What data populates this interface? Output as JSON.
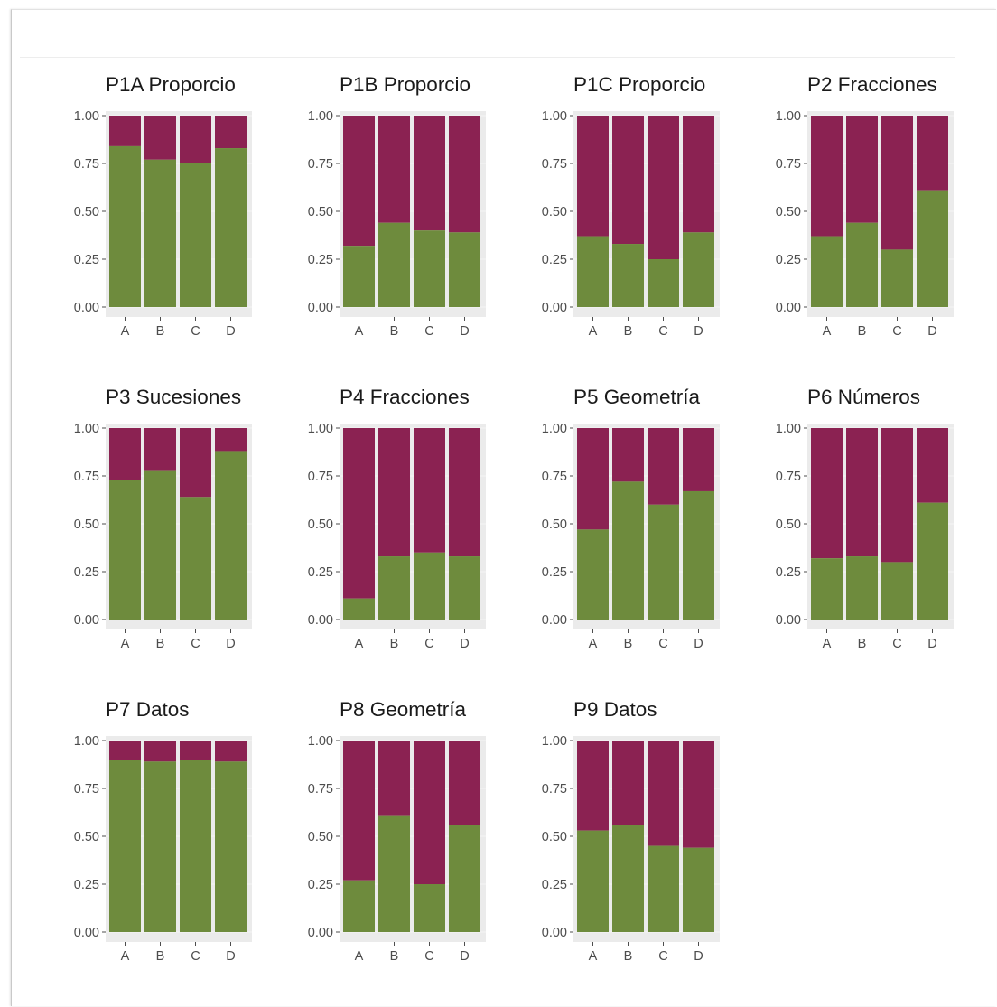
{
  "colors": {
    "correct": "#6e8b3d",
    "incorrect": "#8b2252",
    "panel_bg": "#ebebeb",
    "grid": "#f7f7f7",
    "tick": "#4d4d4d"
  },
  "y_ticks": [
    "0.00",
    "0.25",
    "0.50",
    "0.75",
    "1.00"
  ],
  "chart_data": [
    {
      "type": "bar",
      "stacked": true,
      "title": "P1A Proporcio",
      "categories": [
        "A",
        "B",
        "C",
        "D"
      ],
      "values": [
        0.84,
        0.77,
        0.75,
        0.83
      ],
      "ylim": [
        0,
        1
      ]
    },
    {
      "type": "bar",
      "stacked": true,
      "title": "P1B Proporcio",
      "categories": [
        "A",
        "B",
        "C",
        "D"
      ],
      "values": [
        0.32,
        0.44,
        0.4,
        0.39
      ],
      "ylim": [
        0,
        1
      ]
    },
    {
      "type": "bar",
      "stacked": true,
      "title": "P1C Proporcio",
      "categories": [
        "A",
        "B",
        "C",
        "D"
      ],
      "values": [
        0.37,
        0.33,
        0.25,
        0.39
      ],
      "ylim": [
        0,
        1
      ]
    },
    {
      "type": "bar",
      "stacked": true,
      "title": "P2 Fracciones",
      "categories": [
        "A",
        "B",
        "C",
        "D"
      ],
      "values": [
        0.37,
        0.44,
        0.3,
        0.61
      ],
      "ylim": [
        0,
        1
      ]
    },
    {
      "type": "bar",
      "stacked": true,
      "title": "P3 Sucesiones",
      "categories": [
        "A",
        "B",
        "C",
        "D"
      ],
      "values": [
        0.73,
        0.78,
        0.64,
        0.88
      ],
      "ylim": [
        0,
        1
      ]
    },
    {
      "type": "bar",
      "stacked": true,
      "title": "P4 Fracciones",
      "categories": [
        "A",
        "B",
        "C",
        "D"
      ],
      "values": [
        0.11,
        0.33,
        0.35,
        0.33
      ],
      "ylim": [
        0,
        1
      ]
    },
    {
      "type": "bar",
      "stacked": true,
      "title": "P5 Geometría",
      "categories": [
        "A",
        "B",
        "C",
        "D"
      ],
      "values": [
        0.47,
        0.72,
        0.6,
        0.67
      ],
      "ylim": [
        0,
        1
      ]
    },
    {
      "type": "bar",
      "stacked": true,
      "title": "P6 Números",
      "categories": [
        "A",
        "B",
        "C",
        "D"
      ],
      "values": [
        0.32,
        0.33,
        0.3,
        0.61
      ],
      "ylim": [
        0,
        1
      ]
    },
    {
      "type": "bar",
      "stacked": true,
      "title": "P7 Datos",
      "categories": [
        "A",
        "B",
        "C",
        "D"
      ],
      "values": [
        0.9,
        0.89,
        0.9,
        0.89
      ],
      "ylim": [
        0,
        1
      ]
    },
    {
      "type": "bar",
      "stacked": true,
      "title": "P8 Geometría",
      "categories": [
        "A",
        "B",
        "C",
        "D"
      ],
      "values": [
        0.27,
        0.61,
        0.25,
        0.56
      ],
      "ylim": [
        0,
        1
      ]
    },
    {
      "type": "bar",
      "stacked": true,
      "title": "P9 Datos",
      "categories": [
        "A",
        "B",
        "C",
        "D"
      ],
      "values": [
        0.53,
        0.56,
        0.45,
        0.44
      ],
      "ylim": [
        0,
        1
      ]
    }
  ]
}
